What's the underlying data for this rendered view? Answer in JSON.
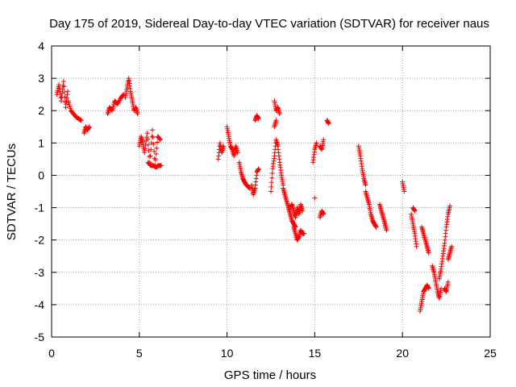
{
  "chart_data": {
    "type": "scatter",
    "title": "Day 175 of 2019, Sidereal Day-to-day VTEC variation (SDTVAR) for receiver naus",
    "xlabel": "GPS time / hours",
    "ylabel": "SDTVAR / TECUs",
    "xlim": [
      0,
      25
    ],
    "ylim": [
      -5,
      4
    ],
    "x_ticks": [
      0,
      5,
      10,
      15,
      20,
      25
    ],
    "y_ticks": [
      -5,
      -4,
      -3,
      -2,
      -1,
      0,
      1,
      2,
      3,
      4
    ],
    "grid": true,
    "marker": "+",
    "marker_color": "#ff0000",
    "series": [
      {
        "name": "SDTVAR",
        "segments": [
          {
            "x": [
              0.3,
              0.42,
              0.55,
              0.68,
              0.8,
              0.92
            ],
            "y": [
              2.5,
              2.8,
              2.3,
              2.9,
              2.1,
              2.6
            ]
          },
          {
            "x": [
              0.95,
              1.1,
              1.25,
              1.4,
              1.55,
              1.68
            ],
            "y": [
              2.3,
              2.0,
              1.9,
              1.8,
              1.75,
              1.7
            ]
          },
          {
            "x": [
              1.85,
              1.95,
              2.05,
              2.15
            ],
            "y": [
              1.3,
              1.5,
              1.4,
              1.5
            ]
          },
          {
            "x": [
              3.2,
              3.3,
              3.45,
              3.6,
              3.75,
              3.95,
              4.1
            ],
            "y": [
              1.9,
              2.1,
              2.0,
              2.3,
              2.2,
              2.4,
              2.5
            ]
          },
          {
            "x": [
              4.2,
              4.3,
              4.4,
              4.5,
              4.6,
              4.7,
              4.8,
              4.9
            ],
            "y": [
              2.4,
              2.7,
              3.0,
              2.6,
              2.3,
              2.0,
              2.1,
              1.9
            ]
          },
          {
            "x": [
              5.0,
              5.1,
              5.2,
              5.3,
              5.45,
              5.6,
              5.75,
              5.9,
              6.05,
              6.2
            ],
            "y": [
              0.9,
              1.2,
              1.0,
              0.7,
              1.3,
              0.4,
              1.4,
              0.3,
              1.2,
              1.1
            ]
          },
          {
            "x": [
              5.5,
              5.65,
              5.8,
              5.95,
              6.1,
              6.25
            ],
            "y": [
              0.4,
              0.3,
              0.3,
              0.25,
              0.3,
              0.3
            ]
          },
          {
            "x": [
              9.5,
              9.6,
              9.7,
              9.8
            ],
            "y": [
              0.5,
              1.0,
              0.7,
              0.9
            ]
          },
          {
            "x": [
              10.0,
              10.1,
              10.2,
              10.3,
              10.4,
              10.5,
              10.6
            ],
            "y": [
              1.5,
              1.2,
              0.9,
              0.8,
              0.6,
              0.9,
              0.7
            ]
          },
          {
            "x": [
              10.7,
              10.8,
              10.9,
              11.0,
              11.1,
              11.2,
              11.3
            ],
            "y": [
              0.4,
              0.1,
              -0.1,
              -0.2,
              -0.3,
              -0.35,
              -0.4
            ]
          },
          {
            "x": [
              11.4,
              11.5,
              11.6,
              11.7,
              11.8
            ],
            "y": [
              -0.3,
              -0.6,
              -0.4,
              0.1,
              0.2
            ]
          },
          {
            "x": [
              11.6,
              11.7,
              11.8
            ],
            "y": [
              1.7,
              1.85,
              1.75
            ]
          },
          {
            "x": [
              12.5,
              12.6,
              12.7,
              12.8,
              12.9,
              13.0,
              13.1,
              13.2
            ],
            "y": [
              -0.5,
              0.2,
              0.6,
              1.1,
              0.9,
              0.4,
              0.0,
              -0.3
            ]
          },
          {
            "x": [
              12.7,
              12.8,
              12.9,
              13.0
            ],
            "y": [
              2.3,
              2.0,
              2.1,
              1.9
            ]
          },
          {
            "x": [
              12.7,
              12.8
            ],
            "y": [
              1.5,
              1.7
            ]
          },
          {
            "x": [
              13.2,
              13.3,
              13.4,
              13.5,
              13.6,
              13.7,
              13.8,
              13.9
            ],
            "y": [
              -0.4,
              -0.6,
              -0.8,
              -1.0,
              -1.2,
              -1.4,
              -1.5,
              -1.6
            ]
          },
          {
            "x": [
              13.6,
              13.7,
              13.8,
              13.9,
              14.0,
              14.1,
              14.2,
              14.3
            ],
            "y": [
              -1.0,
              -0.9,
              -1.1,
              -1.3,
              -1.0,
              -1.2,
              -0.9,
              -1.1
            ]
          },
          {
            "x": [
              13.8,
              13.9,
              14.0,
              14.1,
              14.2,
              14.3,
              14.4
            ],
            "y": [
              -1.6,
              -1.8,
              -2.0,
              -1.9,
              -1.7,
              -1.8,
              -1.8
            ]
          },
          {
            "x": [
              14.9,
              15.0,
              15.1
            ],
            "y": [
              0.4,
              0.8,
              1.0
            ]
          },
          {
            "x": [
              15.3,
              15.4,
              15.5
            ],
            "y": [
              0.9,
              0.8,
              1.1
            ]
          },
          {
            "x": [
              15.0
            ],
            "y": [
              -0.7
            ]
          },
          {
            "x": [
              15.3,
              15.4,
              15.5
            ],
            "y": [
              -1.3,
              -1.1,
              -1.2
            ]
          },
          {
            "x": [
              15.7,
              15.8
            ],
            "y": [
              1.7,
              1.6
            ]
          },
          {
            "x": [
              17.5,
              17.6,
              17.7,
              17.8,
              17.9
            ],
            "y": [
              0.9,
              0.6,
              0.2,
              -0.1,
              -0.3
            ]
          },
          {
            "x": [
              17.9,
              18.0,
              18.1,
              18.2,
              18.3,
              18.4,
              18.5
            ],
            "y": [
              -0.5,
              -0.7,
              -0.9,
              -1.2,
              -1.4,
              -1.5,
              -1.6
            ]
          },
          {
            "x": [
              18.7,
              18.8,
              18.9,
              19.0,
              19.1
            ],
            "y": [
              -0.9,
              -1.1,
              -1.3,
              -1.5,
              -1.7
            ]
          },
          {
            "x": [
              20.0,
              20.1
            ],
            "y": [
              -0.2,
              -0.5
            ]
          },
          {
            "x": [
              20.5,
              20.6,
              20.7,
              20.8
            ],
            "y": [
              -1.2,
              -1.5,
              -1.8,
              -2.2
            ]
          },
          {
            "x": [
              20.6,
              20.7
            ],
            "y": [
              -1.0,
              -1.1
            ]
          },
          {
            "x": [
              21.0,
              21.1,
              21.2,
              21.3,
              21.4,
              21.5
            ],
            "y": [
              -4.2,
              -3.9,
              -3.6,
              -3.5,
              -3.4,
              -3.5
            ]
          },
          {
            "x": [
              21.1,
              21.2,
              21.3,
              21.4,
              21.5
            ],
            "y": [
              -1.6,
              -1.8,
              -2.0,
              -2.2,
              -2.4
            ]
          },
          {
            "x": [
              21.7,
              21.8,
              21.9,
              22.0,
              22.1,
              22.2
            ],
            "y": [
              -2.8,
              -3.0,
              -3.3,
              -3.6,
              -3.8,
              -3.5
            ]
          },
          {
            "x": [
              22.1,
              22.2,
              22.3,
              22.4,
              22.5,
              22.6,
              22.7
            ],
            "y": [
              -3.2,
              -2.9,
              -2.5,
              -2.1,
              -1.6,
              -1.2,
              -0.95
            ]
          },
          {
            "x": [
              22.4,
              22.5,
              22.6
            ],
            "y": [
              -3.5,
              -3.6,
              -3.3
            ]
          },
          {
            "x": [
              22.6,
              22.7,
              22.8
            ],
            "y": [
              -2.6,
              -2.4,
              -2.2
            ]
          }
        ]
      }
    ]
  }
}
